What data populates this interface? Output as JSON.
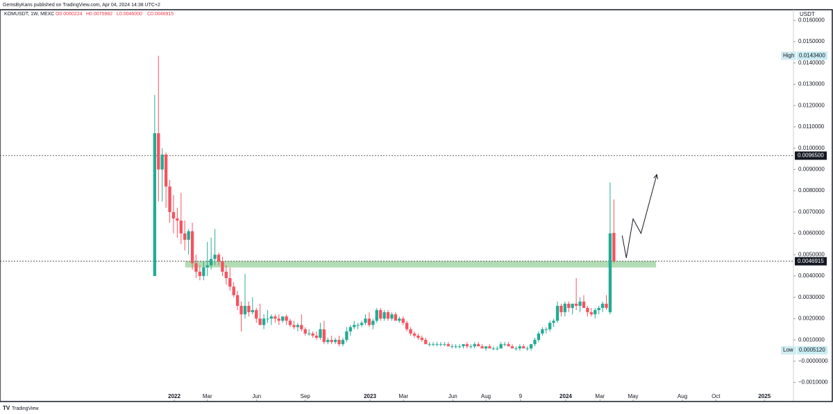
{
  "header": {
    "published": "GemsByKans published on TradingView.com, Apr 04, 2024 14:38 UTC+2",
    "symbol": "KOMUSDT, 1W, MEXC",
    "ohlc_text": [
      "O0.0060224",
      "H0.0075982",
      "L0.0046000",
      "C0.0046915"
    ]
  },
  "footer": "TradingView",
  "chart_data": {
    "type": "candlestick",
    "currency": "USDT",
    "up_color": "#22ab94",
    "down_color": "#f7525f",
    "xlim": [
      -41.1,
      169.7
    ],
    "ylim": [
      -0.00186,
      0.0165
    ],
    "xticks": [
      {
        "value": 5.2,
        "label": "2022"
      },
      {
        "value": 14.0,
        "label": "Mar"
      },
      {
        "value": 27.1,
        "label": "Jun"
      },
      {
        "value": 40.0,
        "label": "Sep"
      },
      {
        "value": 57.2,
        "label": "2023"
      },
      {
        "value": 66.1,
        "label": "Mar"
      },
      {
        "value": 79.2,
        "label": "Jun"
      },
      {
        "value": 88.0,
        "label": "Aug"
      },
      {
        "value": 97.2,
        "label": "9"
      },
      {
        "value": 109.2,
        "label": "2024"
      },
      {
        "value": 118.3,
        "label": "Mar"
      },
      {
        "value": 127.1,
        "label": "May"
      },
      {
        "value": 140.2,
        "label": "Aug"
      },
      {
        "value": 149.1,
        "label": "Oct"
      },
      {
        "value": 162.0,
        "label": "2025"
      }
    ],
    "yticks": [
      {
        "value": -0.001,
        "label": "−0.0010000"
      },
      {
        "value": 0,
        "label": "−0.0000000"
      },
      {
        "value": 0.001,
        "label": "0.0010000"
      },
      {
        "value": 0.002,
        "label": "0.0020000"
      },
      {
        "value": 0.003,
        "label": "0.0030000"
      },
      {
        "value": 0.004,
        "label": "0.0040000"
      },
      {
        "value": 0.005,
        "label": "0.0050000"
      },
      {
        "value": 0.006,
        "label": "0.0060000"
      },
      {
        "value": 0.007,
        "label": "0.0070000"
      },
      {
        "value": 0.008,
        "label": "0.0080000"
      },
      {
        "value": 0.009,
        "label": "0.0090000"
      },
      {
        "value": 0.01,
        "label": "0.0100000"
      },
      {
        "value": 0.011,
        "label": "0.0110000"
      },
      {
        "value": 0.012,
        "label": "0.0120000"
      },
      {
        "value": 0.013,
        "label": "0.0130000"
      },
      {
        "value": 0.014,
        "label": "0.0140000"
      },
      {
        "value": 0.015,
        "label": "0.0150000"
      },
      {
        "value": 0.016,
        "label": "0.0160000"
      }
    ],
    "ohlc": [
      [
        0.004,
        0.0125,
        0.004,
        0.0107
      ],
      [
        0.0107,
        0.01434,
        0.0075,
        0.009
      ],
      [
        0.009,
        0.01,
        0.0075,
        0.0097
      ],
      [
        0.0097,
        0.0098,
        0.0072,
        0.0082
      ],
      [
        0.0082,
        0.0085,
        0.0065,
        0.007
      ],
      [
        0.007,
        0.0078,
        0.006,
        0.0067
      ],
      [
        0.0067,
        0.0072,
        0.0058,
        0.0066
      ],
      [
        0.0066,
        0.0079,
        0.0055,
        0.006
      ],
      [
        0.006,
        0.0066,
        0.0052,
        0.0057
      ],
      [
        0.0057,
        0.0062,
        0.005,
        0.0061
      ],
      [
        0.0061,
        0.0065,
        0.0043,
        0.0046
      ],
      [
        0.0046,
        0.005,
        0.0039,
        0.0042
      ],
      [
        0.0042,
        0.0045,
        0.0038,
        0.004
      ],
      [
        0.004,
        0.0047,
        0.0038,
        0.0044
      ],
      [
        0.0044,
        0.0056,
        0.004,
        0.0045
      ],
      [
        0.0045,
        0.0058,
        0.0043,
        0.0048
      ],
      [
        0.0048,
        0.0062,
        0.0045,
        0.005
      ],
      [
        0.005,
        0.0051,
        0.0045,
        0.0047
      ],
      [
        0.0047,
        0.0049,
        0.004,
        0.0042
      ],
      [
        0.0042,
        0.0045,
        0.0036,
        0.0039
      ],
      [
        0.0039,
        0.0044,
        0.0033,
        0.0035
      ],
      [
        0.0035,
        0.0037,
        0.003,
        0.0031
      ],
      [
        0.0031,
        0.0033,
        0.0024,
        0.0026
      ],
      [
        0.0026,
        0.0028,
        0.0014,
        0.0022
      ],
      [
        0.0022,
        0.0041,
        0.002,
        0.0026
      ],
      [
        0.0026,
        0.0028,
        0.0021,
        0.0023
      ],
      [
        0.0023,
        0.003,
        0.0022,
        0.0024
      ],
      [
        0.0024,
        0.0025,
        0.0018,
        0.002
      ],
      [
        0.002,
        0.0027,
        0.0017,
        0.0017
      ],
      [
        0.0017,
        0.0022,
        0.0015,
        0.002
      ],
      [
        0.002,
        0.0024,
        0.0018,
        0.002
      ],
      [
        0.002,
        0.0022,
        0.0017,
        0.0021
      ],
      [
        0.0021,
        0.0022,
        0.0018,
        0.002
      ],
      [
        0.002,
        0.0022,
        0.0017,
        0.0019
      ],
      [
        0.0019,
        0.0021,
        0.0018,
        0.0021
      ],
      [
        0.0021,
        0.0022,
        0.0017,
        0.0019
      ],
      [
        0.0019,
        0.002,
        0.0016,
        0.0017
      ],
      [
        0.0017,
        0.0019,
        0.0015,
        0.0016
      ],
      [
        0.0016,
        0.0018,
        0.0014,
        0.0017
      ],
      [
        0.0017,
        0.0022,
        0.0014,
        0.0015
      ],
      [
        0.0015,
        0.0016,
        0.0012,
        0.0013
      ],
      [
        0.0013,
        0.0015,
        0.0012,
        0.0013
      ],
      [
        0.0013,
        0.0014,
        0.0011,
        0.0012
      ],
      [
        0.0012,
        0.0014,
        0.001,
        0.0011
      ],
      [
        0.0011,
        0.0018,
        0.001,
        0.0015
      ],
      [
        0.0015,
        0.0019,
        0.0008,
        0.0009
      ],
      [
        0.0009,
        0.0011,
        0.0008,
        0.001
      ],
      [
        0.001,
        0.0012,
        0.0008,
        0.0009
      ],
      [
        0.0009,
        0.0011,
        0.0008,
        0.001
      ],
      [
        0.001,
        0.0012,
        0.0007,
        0.0008
      ],
      [
        0.0008,
        0.0011,
        0.0007,
        0.001
      ],
      [
        0.001,
        0.0016,
        0.0009,
        0.0014
      ],
      [
        0.0014,
        0.0017,
        0.0012,
        0.0016
      ],
      [
        0.0016,
        0.0019,
        0.0015,
        0.0017
      ],
      [
        0.0017,
        0.0018,
        0.0015,
        0.0017
      ],
      [
        0.0017,
        0.0019,
        0.0016,
        0.0018
      ],
      [
        0.0018,
        0.0022,
        0.0017,
        0.002
      ],
      [
        0.002,
        0.0023,
        0.0016,
        0.0017
      ],
      [
        0.0017,
        0.002,
        0.0015,
        0.0019
      ],
      [
        0.0019,
        0.0025,
        0.0018,
        0.0024
      ],
      [
        0.0024,
        0.0025,
        0.0019,
        0.002
      ],
      [
        0.002,
        0.0024,
        0.0019,
        0.0023
      ],
      [
        0.0023,
        0.0024,
        0.0019,
        0.002
      ],
      [
        0.002,
        0.0023,
        0.0019,
        0.0022
      ],
      [
        0.0022,
        0.0023,
        0.0019,
        0.0019
      ],
      [
        0.0019,
        0.0021,
        0.0018,
        0.002
      ],
      [
        0.002,
        0.0021,
        0.0017,
        0.0018
      ],
      [
        0.0018,
        0.0019,
        0.0014,
        0.0015
      ],
      [
        0.0015,
        0.0016,
        0.0012,
        0.0013
      ],
      [
        0.0013,
        0.0014,
        0.0011,
        0.0012
      ],
      [
        0.0012,
        0.0013,
        0.001,
        0.0011
      ],
      [
        0.0011,
        0.0012,
        0.0009,
        0.001
      ],
      [
        0.001,
        0.0011,
        0.0008,
        0.0008
      ],
      [
        0.0008,
        0.0009,
        0.0007,
        0.0008
      ],
      [
        0.0008,
        0.0009,
        0.0007,
        0.0008
      ],
      [
        0.0008,
        0.0009,
        0.0007,
        0.0008
      ],
      [
        0.0008,
        0.0009,
        0.0007,
        0.0008
      ],
      [
        0.0008,
        0.0009,
        0.0007,
        0.0008
      ],
      [
        0.0008,
        0.0009,
        0.0007,
        0.0007
      ],
      [
        0.0007,
        0.0008,
        0.0006,
        0.0007
      ],
      [
        0.0007,
        0.0008,
        0.0006,
        0.0007
      ],
      [
        0.0007,
        0.0008,
        0.0006,
        0.0007
      ],
      [
        0.0007,
        0.0008,
        0.0006,
        0.0008
      ],
      [
        0.0008,
        0.0009,
        0.0006,
        0.0007
      ],
      [
        0.0007,
        0.0008,
        0.0006,
        0.0007
      ],
      [
        0.0007,
        0.0009,
        0.0006,
        0.0008
      ],
      [
        0.0008,
        0.0009,
        0.0007,
        0.0007
      ],
      [
        0.0007,
        0.0008,
        0.0006,
        0.0006
      ],
      [
        0.0006,
        0.0007,
        0.0005,
        0.0007
      ],
      [
        0.0007,
        0.0008,
        0.0006,
        0.0006
      ],
      [
        0.0006,
        0.0007,
        0.000512,
        0.0006
      ],
      [
        0.0006,
        0.0007,
        0.0005,
        0.0006
      ],
      [
        0.0006,
        0.0009,
        0.0007,
        0.0008
      ],
      [
        0.0008,
        0.0009,
        0.0007,
        0.0008
      ],
      [
        0.0008,
        0.0009,
        0.0007,
        0.0007
      ],
      [
        0.0007,
        0.0008,
        0.0006,
        0.0006
      ],
      [
        0.0006,
        0.0007,
        0.0005,
        0.0006
      ],
      [
        0.0006,
        0.0008,
        0.0005,
        0.0007
      ],
      [
        0.0007,
        0.0008,
        0.0006,
        0.0006
      ],
      [
        0.0006,
        0.0007,
        0.0005,
        0.0006
      ],
      [
        0.0006,
        0.0008,
        0.0005,
        0.0008
      ],
      [
        0.0008,
        0.0011,
        0.0007,
        0.001
      ],
      [
        0.001,
        0.0014,
        0.0009,
        0.0013
      ],
      [
        0.0013,
        0.0016,
        0.0012,
        0.0015
      ],
      [
        0.0015,
        0.0016,
        0.0013,
        0.0015
      ],
      [
        0.0015,
        0.0019,
        0.0014,
        0.0018
      ],
      [
        0.0018,
        0.002,
        0.0016,
        0.0019
      ],
      [
        0.0019,
        0.0028,
        0.0018,
        0.0026
      ],
      [
        0.0026,
        0.0027,
        0.0021,
        0.0023
      ],
      [
        0.0023,
        0.0028,
        0.0021,
        0.0027
      ],
      [
        0.0027,
        0.0028,
        0.0023,
        0.0025
      ],
      [
        0.0025,
        0.0027,
        0.0022,
        0.0027
      ],
      [
        0.0027,
        0.0039,
        0.0024,
        0.0026
      ],
      [
        0.0026,
        0.003,
        0.0023,
        0.0028
      ],
      [
        0.0028,
        0.0031,
        0.0025,
        0.0025
      ],
      [
        0.0025,
        0.0026,
        0.0021,
        0.0023
      ],
      [
        0.0023,
        0.0025,
        0.0021,
        0.0022
      ],
      [
        0.0022,
        0.0025,
        0.002,
        0.0024
      ],
      [
        0.0024,
        0.0026,
        0.0022,
        0.0025
      ],
      [
        0.0025,
        0.0028,
        0.0023,
        0.0027
      ],
      [
        0.0027,
        0.0031,
        0.0024,
        0.0025
      ],
      [
        0.0023,
        0.0084,
        0.0022,
        0.006
      ],
      [
        0.0060224,
        0.0075982,
        0.0046,
        0.0046915
      ]
    ],
    "zone": {
      "x": [
        8.1,
        133.2
      ],
      "y": [
        0.0044,
        0.0047
      ],
      "color": "#a5d6a7"
    },
    "projection": {
      "x": [
        124.2,
        125.3,
        127.1,
        129.2,
        133.4
      ],
      "y": [
        0.0059,
        0.00485,
        0.00668,
        0.006,
        0.00876
      ]
    },
    "level_line": {
      "value": 0.00965,
      "label": "0.0096500"
    },
    "price_line": {
      "value": 0.0046915,
      "label": "0.0046915"
    },
    "high_badge": {
      "name": "High",
      "value": 0.01434,
      "label": "0.0143400"
    },
    "low_badge": {
      "name": "Low",
      "value": 0.000512,
      "label": "0.0005120"
    }
  }
}
